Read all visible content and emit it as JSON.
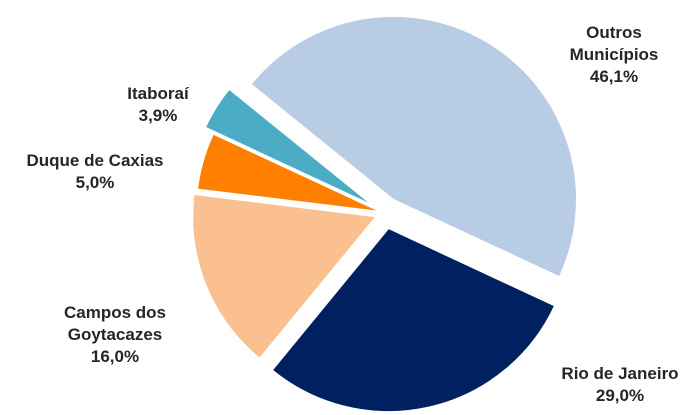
{
  "chart_data": {
    "type": "pie",
    "categories": [
      "Outros Municípios",
      "Rio de Janeiro",
      "Campos dos Goytacazes",
      "Duque de Caxias",
      "Itaboraí"
    ],
    "values": [
      46.1,
      29.0,
      16.0,
      5.0,
      3.9
    ],
    "value_labels": [
      "46,1%",
      "29,0%",
      "16,0%",
      "5,0%",
      "3,9%"
    ],
    "colors": [
      "#b8cce4",
      "#002060",
      "#fac090",
      "#ff8000",
      "#4bacc6"
    ]
  }
}
